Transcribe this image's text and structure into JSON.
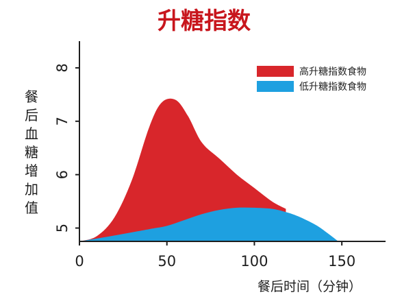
{
  "chart_data": {
    "type": "area",
    "title": "升糖指数",
    "xlabel": "餐后时间（分钟）",
    "ylabel": "餐后血糖增加值",
    "xlim": [
      0,
      175
    ],
    "ylim": [
      4.75,
      8.5
    ],
    "xticks": [
      "0",
      "50",
      "100",
      "150"
    ],
    "xtick_values": [
      0,
      50,
      100,
      150
    ],
    "yticks": [
      "5",
      "6",
      "7",
      "8"
    ],
    "ytick_values": [
      5,
      6,
      7,
      8
    ],
    "grid": false,
    "legend_position": "top-right",
    "series": [
      {
        "name": "高升糖指数食物",
        "color": "#d8262b",
        "points": [
          [
            0,
            4.75
          ],
          [
            10,
            4.85
          ],
          [
            20,
            5.2
          ],
          [
            30,
            5.9
          ],
          [
            40,
            6.9
          ],
          [
            47,
            7.35
          ],
          [
            55,
            7.4
          ],
          [
            62,
            7.1
          ],
          [
            70,
            6.6
          ],
          [
            80,
            6.3
          ],
          [
            90,
            6.0
          ],
          [
            100,
            5.75
          ],
          [
            110,
            5.5
          ],
          [
            118,
            5.36
          ]
        ]
      },
      {
        "name": "低升糖指数食物",
        "color": "#1ea0e0",
        "points": [
          [
            0,
            4.75
          ],
          [
            20,
            4.86
          ],
          [
            40,
            4.98
          ],
          [
            50,
            5.04
          ],
          [
            60,
            5.15
          ],
          [
            70,
            5.26
          ],
          [
            80,
            5.34
          ],
          [
            90,
            5.38
          ],
          [
            100,
            5.38
          ],
          [
            110,
            5.36
          ],
          [
            118,
            5.3
          ],
          [
            125,
            5.22
          ],
          [
            135,
            5.06
          ],
          [
            142,
            4.9
          ],
          [
            148,
            4.75
          ]
        ]
      }
    ]
  }
}
